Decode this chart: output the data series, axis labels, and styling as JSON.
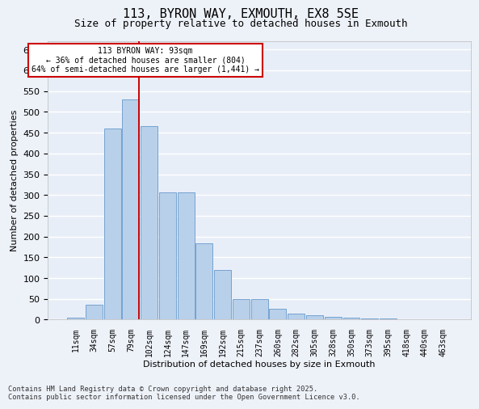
{
  "title": "113, BYRON WAY, EXMOUTH, EX8 5SE",
  "subtitle": "Size of property relative to detached houses in Exmouth",
  "xlabel": "Distribution of detached houses by size in Exmouth",
  "ylabel": "Number of detached properties",
  "categories": [
    "11sqm",
    "34sqm",
    "57sqm",
    "79sqm",
    "102sqm",
    "124sqm",
    "147sqm",
    "169sqm",
    "192sqm",
    "215sqm",
    "237sqm",
    "260sqm",
    "282sqm",
    "305sqm",
    "328sqm",
    "350sqm",
    "373sqm",
    "395sqm",
    "418sqm",
    "440sqm",
    "463sqm"
  ],
  "values": [
    5,
    35,
    460,
    530,
    465,
    307,
    307,
    183,
    120,
    50,
    50,
    26,
    15,
    11,
    7,
    4,
    2,
    2,
    1,
    1,
    1
  ],
  "bar_color": "#b8d0ea",
  "bar_edge_color": "#6699cc",
  "plot_bg_color": "#e8eef8",
  "fig_bg_color": "#edf1f8",
  "grid_color": "#ffffff",
  "property_line_color": "#cc0000",
  "property_bin_index": 3,
  "annotation_line1": "113 BYRON WAY: 93sqm",
  "annotation_line2": "← 36% of detached houses are smaller (804)",
  "annotation_line3": "64% of semi-detached houses are larger (1,441) →",
  "annotation_border_color": "#cc0000",
  "footer_text": "Contains HM Land Registry data © Crown copyright and database right 2025.\nContains public sector information licensed under the Open Government Licence v3.0.",
  "ylim": [
    0,
    670
  ],
  "yticks": [
    0,
    50,
    100,
    150,
    200,
    250,
    300,
    350,
    400,
    450,
    500,
    550,
    600,
    650
  ]
}
